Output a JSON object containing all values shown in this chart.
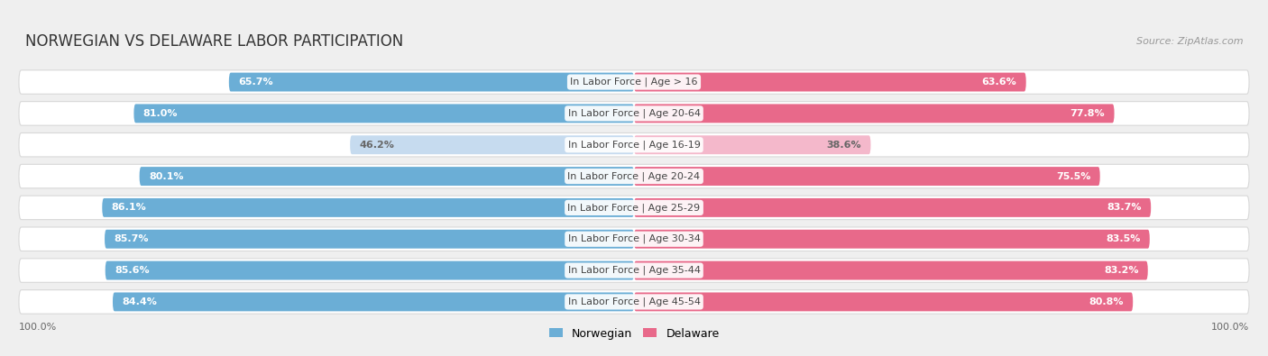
{
  "title": "NORWEGIAN VS DELAWARE LABOR PARTICIPATION",
  "source": "Source: ZipAtlas.com",
  "categories": [
    "In Labor Force | Age > 16",
    "In Labor Force | Age 20-64",
    "In Labor Force | Age 16-19",
    "In Labor Force | Age 20-24",
    "In Labor Force | Age 25-29",
    "In Labor Force | Age 30-34",
    "In Labor Force | Age 35-44",
    "In Labor Force | Age 45-54"
  ],
  "norwegian_values": [
    65.7,
    81.0,
    46.2,
    80.1,
    86.1,
    85.7,
    85.6,
    84.4
  ],
  "delaware_values": [
    63.6,
    77.8,
    38.6,
    75.5,
    83.7,
    83.5,
    83.2,
    80.8
  ],
  "norwegian_color_strong": "#6baed6",
  "norwegian_color_light": "#c6dbef",
  "delaware_color_strong": "#e8698a",
  "delaware_color_light": "#f4b8cb",
  "label_color_dark": "#666666",
  "background_color": "#efefef",
  "row_bg_color": "#ffffff",
  "max_value": 100.0,
  "legend_norwegian": "Norwegian",
  "legend_delaware": "Delaware",
  "bottom_label": "100.0%",
  "title_fontsize": 12,
  "value_fontsize": 8,
  "category_fontsize": 8
}
